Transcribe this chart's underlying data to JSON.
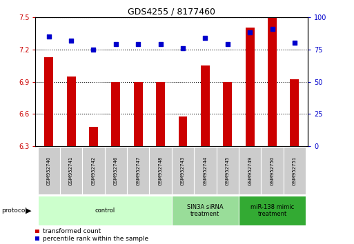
{
  "title": "GDS4255 / 8177460",
  "samples": [
    "GSM952740",
    "GSM952741",
    "GSM952742",
    "GSM952746",
    "GSM952747",
    "GSM952748",
    "GSM952743",
    "GSM952744",
    "GSM952745",
    "GSM952749",
    "GSM952750",
    "GSM952751"
  ],
  "transformed_counts": [
    7.13,
    6.95,
    6.48,
    6.9,
    6.9,
    6.9,
    6.58,
    7.05,
    6.9,
    7.4,
    7.5,
    6.92
  ],
  "percentile_ranks": [
    85,
    82,
    75,
    79,
    79,
    79,
    76,
    84,
    79,
    88,
    91,
    80
  ],
  "ylim_left": [
    6.3,
    7.5
  ],
  "ylim_right": [
    0,
    100
  ],
  "yticks_left": [
    6.3,
    6.6,
    6.9,
    7.2,
    7.5
  ],
  "yticks_right": [
    0,
    25,
    50,
    75,
    100
  ],
  "bar_color": "#cc0000",
  "dot_color": "#0000cc",
  "bar_bottom": 6.3,
  "group_colors": [
    "#ccffcc",
    "#99dd99",
    "#33aa33"
  ],
  "group_labels": [
    "control",
    "SIN3A siRNA\ntreatment",
    "miR-138 mimic\ntreatment"
  ],
  "group_starts": [
    0,
    6,
    9
  ],
  "group_ends": [
    6,
    9,
    12
  ],
  "protocol_label": "protocol",
  "legend_bar_label": "transformed count",
  "legend_dot_label": "percentile rank within the sample",
  "grid_color": "#000000",
  "tick_label_color_left": "#cc0000",
  "tick_label_color_right": "#0000cc",
  "sample_box_color": "#cccccc",
  "bar_width": 0.4
}
